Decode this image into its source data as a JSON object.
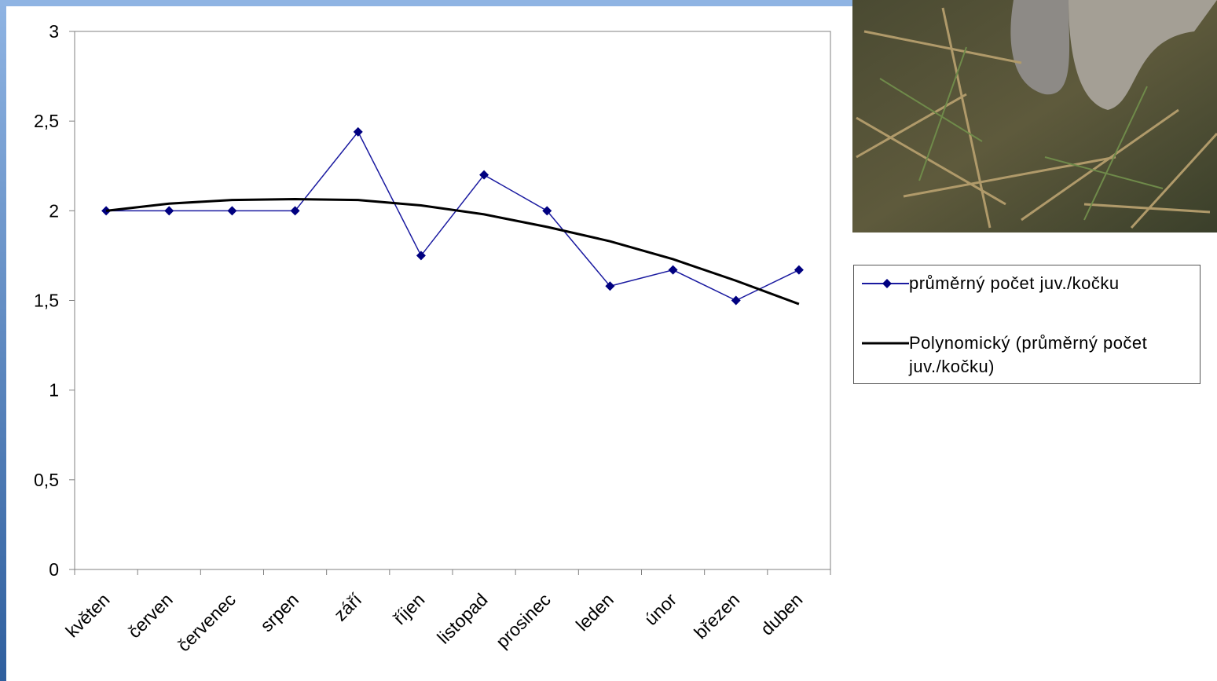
{
  "chart_data": {
    "type": "line",
    "categories": [
      "květen",
      "červen",
      "červenec",
      "srpen",
      "září",
      "říjen",
      "listopad",
      "prosinec",
      "leden",
      "únor",
      "březen",
      "duben"
    ],
    "series": [
      {
        "name": "průměrný počet juv./kočku",
        "color": "#1a1aa0",
        "marker_color": "#000080",
        "values": [
          2,
          2,
          2,
          2,
          2.44,
          1.75,
          2.2,
          2,
          1.58,
          1.67,
          1.5,
          1.67
        ]
      },
      {
        "name": "Polynomický (průměrný počet juv./kočku)",
        "color": "#000000",
        "values": [
          2.0,
          2.04,
          2.06,
          2.065,
          2.06,
          2.03,
          1.98,
          1.91,
          1.83,
          1.73,
          1.61,
          1.48
        ]
      }
    ],
    "ylim": [
      0,
      3
    ],
    "yticks": [
      0,
      {
        "value": 0.5,
        "label": "0,5"
      },
      1,
      {
        "value": 1.5,
        "label": "1,5"
      },
      2,
      {
        "value": 2.5,
        "label": "2,5"
      },
      3
    ],
    "grid": false
  }
}
